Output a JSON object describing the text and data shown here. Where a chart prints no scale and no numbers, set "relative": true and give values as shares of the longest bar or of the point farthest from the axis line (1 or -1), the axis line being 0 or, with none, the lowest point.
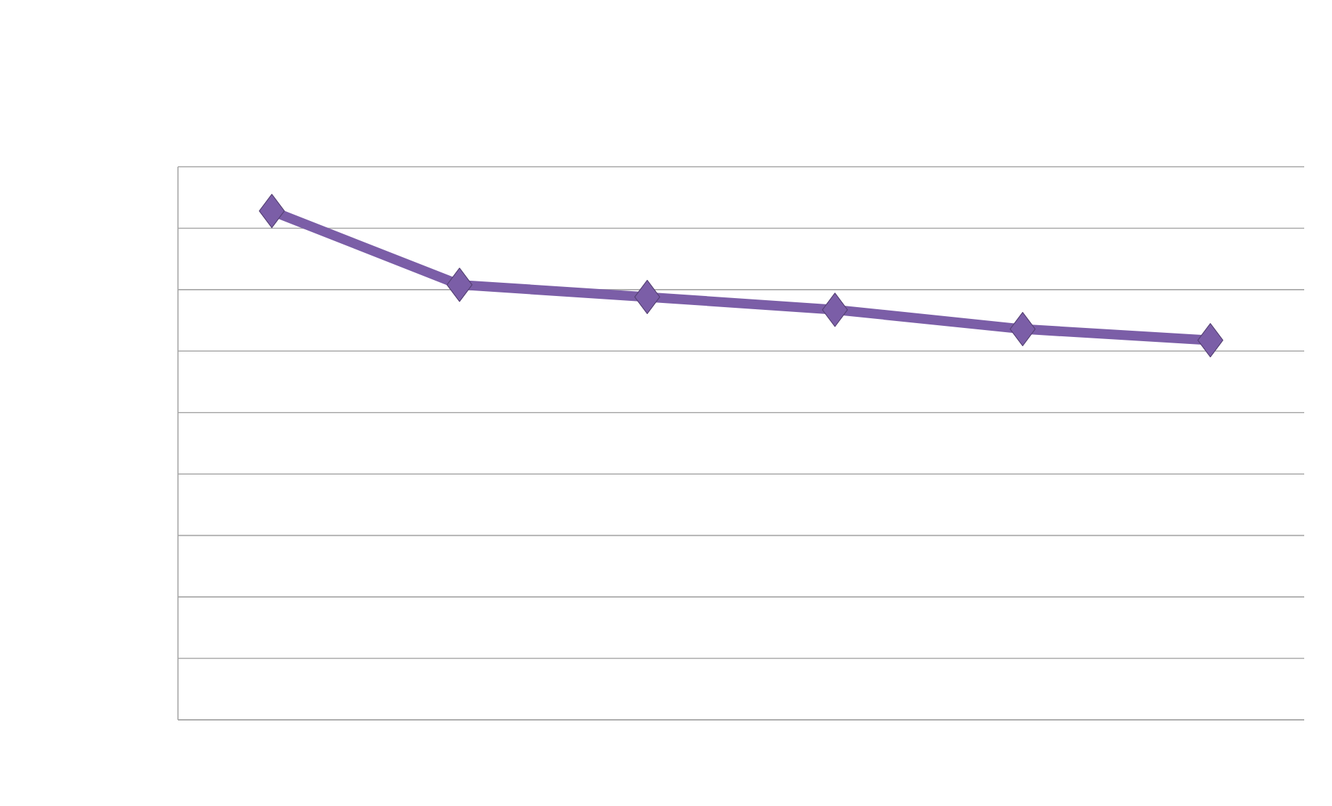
{
  "chart_data": {
    "type": "line",
    "relative": true,
    "categories": [
      null,
      null,
      null,
      null,
      null,
      null
    ],
    "series": [
      {
        "color": "#7b5ea7",
        "values": [
          1,
          0.855,
          0.831,
          0.806,
          0.768,
          0.746
        ]
      }
    ],
    "marker": "diamond",
    "grid": "y"
  }
}
